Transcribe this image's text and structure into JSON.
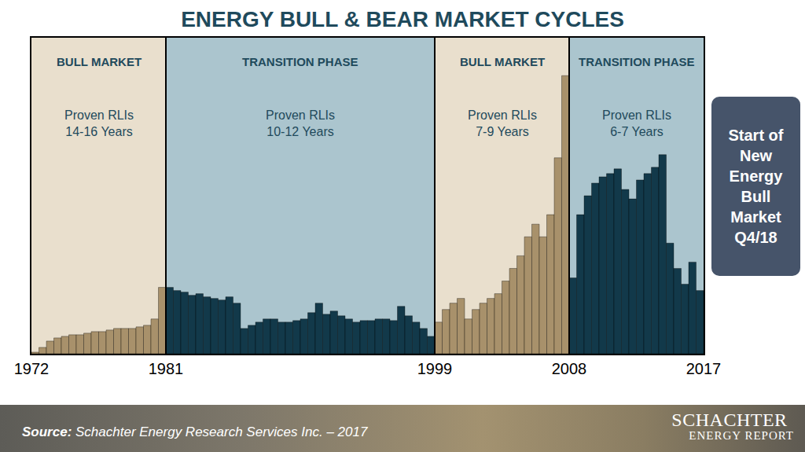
{
  "chart_data": {
    "type": "bar",
    "title": "ENERGY BULL & BEAR MARKET CYCLES",
    "x": [
      1972,
      1972.5,
      1973,
      1973.5,
      1974,
      1974.5,
      1975,
      1975.5,
      1976,
      1976.5,
      1977,
      1977.5,
      1978,
      1978.5,
      1979,
      1979.5,
      1980,
      1980.5,
      1981,
      1981.5,
      1982,
      1982.5,
      1983,
      1983.5,
      1984,
      1984.5,
      1985,
      1985.5,
      1986,
      1986.5,
      1987,
      1987.5,
      1988,
      1988.5,
      1989,
      1989.5,
      1990,
      1990.5,
      1991,
      1991.5,
      1992,
      1992.5,
      1993,
      1993.5,
      1994,
      1994.5,
      1995,
      1995.5,
      1996,
      1996.5,
      1997,
      1997.5,
      1998,
      1998.5,
      1999,
      1999.5,
      2000,
      2000.5,
      2001,
      2001.5,
      2002,
      2002.5,
      2003,
      2003.5,
      2004,
      2004.5,
      2005,
      2005.5,
      2006,
      2006.5,
      2007,
      2007.5,
      2008,
      2008.5,
      2009,
      2009.5,
      2010,
      2010.5,
      2011,
      2011.5,
      2012,
      2012.5,
      2013,
      2013.5,
      2014,
      2014.5,
      2015,
      2015.5,
      2016,
      2016.5,
      2017
    ],
    "values": [
      0,
      0.5,
      2,
      4,
      5,
      5.5,
      6,
      6,
      6.5,
      7,
      7,
      7.5,
      8,
      8,
      8,
      8.5,
      9,
      11,
      21,
      21,
      20,
      19.5,
      18.5,
      19,
      18,
      17.5,
      17,
      18,
      16,
      8,
      9,
      10,
      11,
      11,
      10,
      10,
      10.5,
      11,
      13,
      16,
      12.5,
      13.5,
      12,
      11,
      10,
      10.5,
      10.5,
      11,
      11,
      10.5,
      15,
      12,
      10,
      8,
      5.5,
      10,
      14,
      16,
      17.5,
      11,
      14,
      16,
      17.5,
      19,
      23,
      27,
      31,
      37,
      41,
      37,
      44,
      62,
      88,
      24,
      44,
      50,
      54,
      56,
      57,
      58.5,
      52,
      49,
      55,
      57,
      59,
      63,
      35,
      27,
      22,
      29,
      20
    ],
    "colors": [
      "#a8916b",
      "#a8916b",
      "#a8916b",
      "#a8916b",
      "#a8916b",
      "#a8916b",
      "#a8916b",
      "#a8916b",
      "#a8916b",
      "#a8916b",
      "#a8916b",
      "#a8916b",
      "#a8916b",
      "#a8916b",
      "#a8916b",
      "#a8916b",
      "#a8916b",
      "#a8916b",
      "#a8916b",
      "#12394a",
      "#12394a",
      "#12394a",
      "#12394a",
      "#12394a",
      "#12394a",
      "#12394a",
      "#12394a",
      "#12394a",
      "#12394a",
      "#12394a",
      "#12394a",
      "#12394a",
      "#12394a",
      "#12394a",
      "#12394a",
      "#12394a",
      "#12394a",
      "#12394a",
      "#12394a",
      "#12394a",
      "#12394a",
      "#12394a",
      "#12394a",
      "#12394a",
      "#12394a",
      "#12394a",
      "#12394a",
      "#12394a",
      "#12394a",
      "#12394a",
      "#12394a",
      "#12394a",
      "#12394a",
      "#12394a",
      "#12394a",
      "#a8916b",
      "#a8916b",
      "#a8916b",
      "#a8916b",
      "#a8916b",
      "#a8916b",
      "#a8916b",
      "#a8916b",
      "#a8916b",
      "#a8916b",
      "#a8916b",
      "#a8916b",
      "#a8916b",
      "#a8916b",
      "#a8916b",
      "#a8916b",
      "#a8916b",
      "#a8916b",
      "#12394a",
      "#12394a",
      "#12394a",
      "#12394a",
      "#12394a",
      "#12394a",
      "#12394a",
      "#12394a",
      "#12394a",
      "#12394a",
      "#12394a",
      "#12394a",
      "#12394a",
      "#12394a",
      "#12394a",
      "#12394a",
      "#12394a",
      "#12394a"
    ],
    "xlim": [
      1972,
      2017
    ],
    "xticks": [
      1972,
      1981,
      1999,
      2008,
      2017
    ],
    "ylim": [
      0,
      100
    ],
    "tick_labels": "x",
    "grid": false,
    "regions": [
      {
        "label": "BULL MARKET",
        "note": [
          "Proven RLIs",
          "14-16 Years"
        ],
        "start": 1972,
        "end": 1981,
        "color": "#e9dfcd"
      },
      {
        "label": "TRANSITION PHASE",
        "note": [
          "Proven RLIs",
          "10-12 Years"
        ],
        "start": 1981,
        "end": 1999,
        "color": "#abc5ce"
      },
      {
        "label": "BULL MARKET",
        "note": [
          "Proven RLIs",
          "7-9 Years"
        ],
        "start": 1999,
        "end": 2008,
        "color": "#e9dfcd"
      },
      {
        "label": "TRANSITION PHASE",
        "note": [
          "Proven RLIs",
          "6-7 Years"
        ],
        "start": 2008,
        "end": 2017,
        "color": "#abc5ce"
      }
    ],
    "callout": [
      "Start of",
      "New",
      "Energy",
      "Bull",
      "Market",
      "Q4/18"
    ],
    "source": [
      "Source:",
      "Schachter Energy Research Services Inc.  – 2017"
    ],
    "logo": [
      "SCHACHTER",
      "ENERGY REPORT"
    ]
  }
}
